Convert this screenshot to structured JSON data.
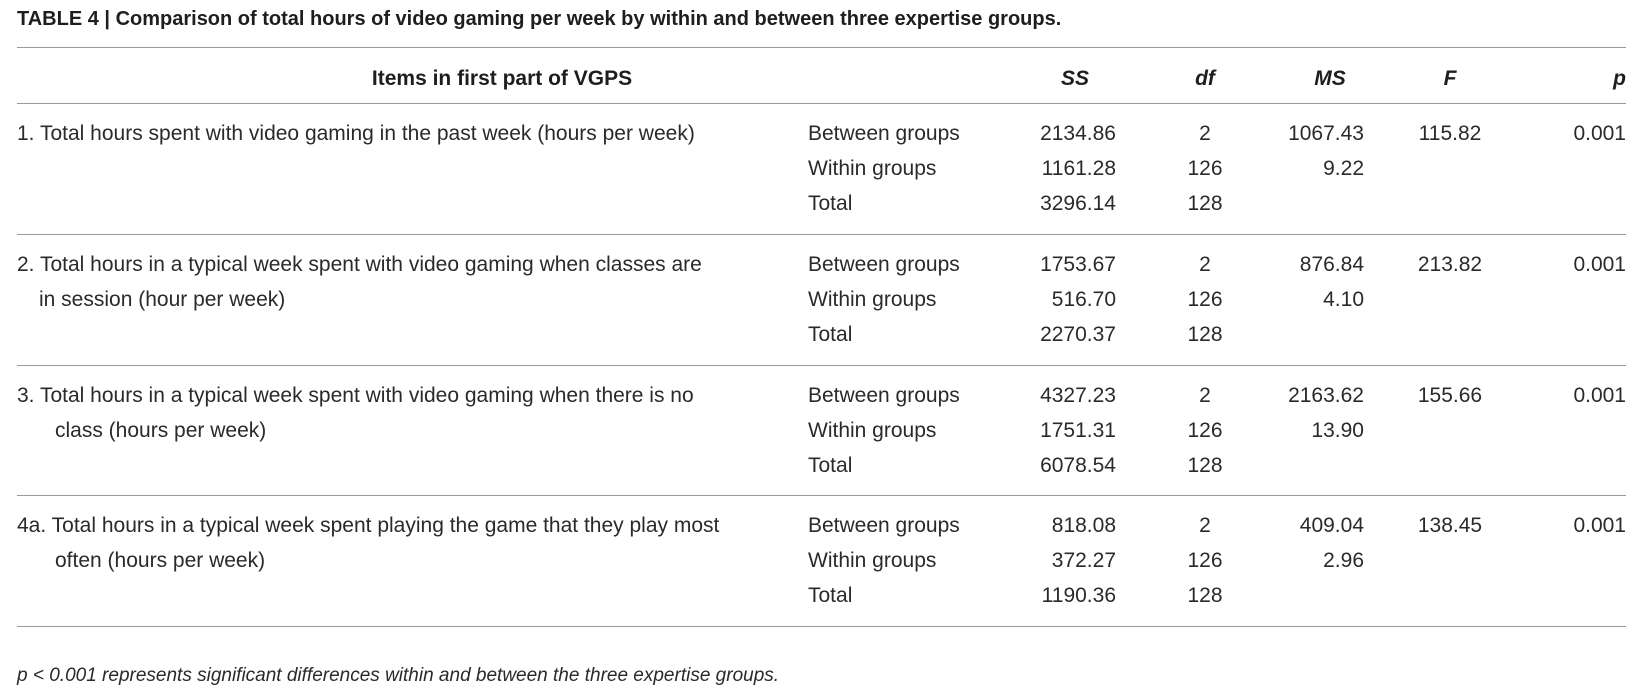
{
  "caption": "TABLE 4 | Comparison of total hours of video gaming per week by within and between three expertise groups.",
  "headers": {
    "items": "Items in first part of VGPS",
    "ss": "SS",
    "df": "df",
    "ms": "MS",
    "f": "F",
    "p": "p"
  },
  "rows": [
    {
      "item_line1": "1. Total hours spent with video gaming in the past week (hours per week)",
      "item_line2": "",
      "between": {
        "label": "Between groups",
        "ss": "2134.86",
        "df": "2",
        "ms": "1067.43",
        "f": "115.82",
        "p": "0.001"
      },
      "within": {
        "label": "Within groups",
        "ss": "1161.28",
        "df": "126",
        "ms": "9.22"
      },
      "total": {
        "label": "Total",
        "ss": "3296.14",
        "df": "128"
      }
    },
    {
      "item_line1": "2. Total hours in a typical week spent with video gaming when classes are",
      "item_line2": "in session (hour per week)",
      "between": {
        "label": "Between groups",
        "ss": "1753.67",
        "df": "2",
        "ms": "876.84",
        "f": "213.82",
        "p": "0.001"
      },
      "within": {
        "label": "Within groups",
        "ss": "516.70",
        "df": "126",
        "ms": "4.10"
      },
      "total": {
        "label": "Total",
        "ss": "2270.37",
        "df": "128"
      }
    },
    {
      "item_line1": "3. Total hours in a typical week spent with video gaming when there is no",
      "item_line2": "class (hours per week)",
      "between": {
        "label": "Between groups",
        "ss": "4327.23",
        "df": "2",
        "ms": "2163.62",
        "f": "155.66",
        "p": "0.001"
      },
      "within": {
        "label": "Within groups",
        "ss": "1751.31",
        "df": "126",
        "ms": "13.90"
      },
      "total": {
        "label": "Total",
        "ss": "6078.54",
        "df": "128"
      }
    },
    {
      "item_line1": "4a. Total hours in a typical week spent playing the game that they play most",
      "item_line2": "often (hours per week)",
      "between": {
        "label": "Between groups",
        "ss": "818.08",
        "df": "2",
        "ms": "409.04",
        "f": "138.45",
        "p": "0.001"
      },
      "within": {
        "label": "Within groups",
        "ss": "372.27",
        "df": "126",
        "ms": "2.96"
      },
      "total": {
        "label": "Total",
        "ss": "1190.36",
        "df": "128"
      }
    }
  ],
  "footnote": "p < 0.001 represents significant differences within and between the three expertise groups."
}
